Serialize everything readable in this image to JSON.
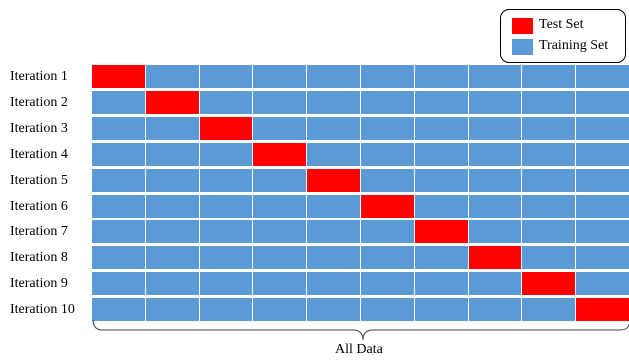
{
  "legend": {
    "test_label": "Test Set",
    "train_label": "Training Set",
    "test_color": "#ff0000",
    "train_color": "#5b9bd5"
  },
  "grid": {
    "folds": 10,
    "rows": [
      {
        "label": "Iteration 1",
        "test_fold": 1
      },
      {
        "label": "Iteration 2",
        "test_fold": 2
      },
      {
        "label": "Iteration 3",
        "test_fold": 3
      },
      {
        "label": "Iteration 4",
        "test_fold": 4
      },
      {
        "label": "Iteration 5",
        "test_fold": 5
      },
      {
        "label": "Iteration 6",
        "test_fold": 6
      },
      {
        "label": "Iteration 7",
        "test_fold": 7
      },
      {
        "label": "Iteration 8",
        "test_fold": 8
      },
      {
        "label": "Iteration 9",
        "test_fold": 9
      },
      {
        "label": "Iteration 10",
        "test_fold": 10
      }
    ]
  },
  "footer": {
    "all_data_label": "All Data"
  }
}
